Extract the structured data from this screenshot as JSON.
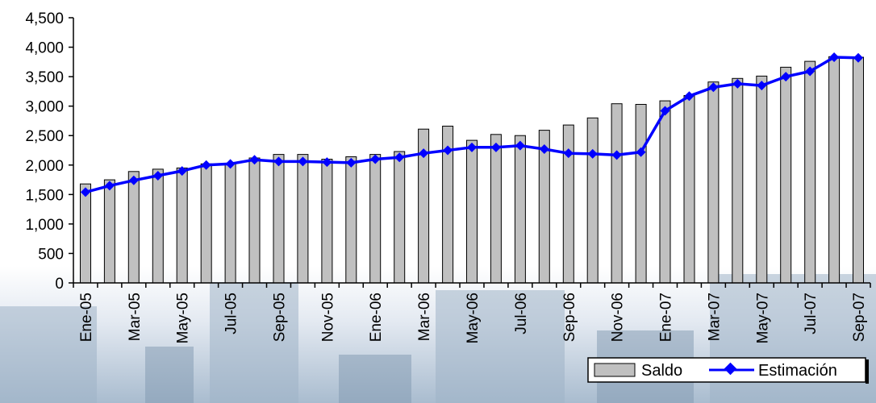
{
  "chart_data": {
    "type": "bar",
    "title": "",
    "xlabel": "",
    "ylabel": "",
    "ylim": [
      0,
      4500
    ],
    "yticks": [
      "0",
      "500",
      "1,000",
      "1,500",
      "2,000",
      "2,500",
      "3,000",
      "3,500",
      "4,000",
      "4,500"
    ],
    "grid": false,
    "legend_position": "bottom-right",
    "categories": [
      "Ene-05",
      "Feb-05",
      "Mar-05",
      "Abr-05",
      "May-05",
      "Jun-05",
      "Jul-05",
      "Ago-05",
      "Sep-05",
      "Oct-05",
      "Nov-05",
      "Dic-05",
      "Ene-06",
      "Feb-06",
      "Mar-06",
      "Abr-06",
      "May-06",
      "Jun-06",
      "Jul-06",
      "Ago-06",
      "Sep-06",
      "Oct-06",
      "Nov-06",
      "Dic-06",
      "Ene-07",
      "Feb-07",
      "Mar-07",
      "Abr-07",
      "May-07",
      "Jun-07",
      "Jul-07",
      "Ago-07",
      "Sep-07"
    ],
    "tick_labels": [
      "Ene-05",
      "",
      "Mar-05",
      "",
      "May-05",
      "",
      "Jul-05",
      "",
      "Sep-05",
      "",
      "Nov-05",
      "",
      "Ene-06",
      "",
      "Mar-06",
      "",
      "May-06",
      "",
      "Jul-06",
      "",
      "Sep-06",
      "",
      "Nov-06",
      "",
      "Ene-07",
      "",
      "Mar-07",
      "",
      "May-07",
      "",
      "Jul-07",
      "",
      "Sep-07"
    ],
    "series": [
      {
        "name": "Saldo",
        "type": "bar",
        "color": "#c0c0c0",
        "values": [
          1680,
          1750,
          1890,
          1930,
          1950,
          2020,
          2030,
          2120,
          2180,
          2180,
          2100,
          2140,
          2180,
          2230,
          2610,
          2660,
          2420,
          2520,
          2500,
          2590,
          2680,
          2800,
          3040,
          3030,
          3090,
          3180,
          3410,
          3470,
          3510,
          3660,
          3760,
          3840,
          3830
        ]
      },
      {
        "name": "Estimación",
        "type": "line",
        "color": "#0000ff",
        "values": [
          1540,
          1650,
          1740,
          1820,
          1900,
          2000,
          2020,
          2090,
          2060,
          2060,
          2050,
          2040,
          2100,
          2130,
          2200,
          2250,
          2300,
          2300,
          2330,
          2270,
          2200,
          2190,
          2170,
          2220,
          2920,
          3170,
          3320,
          3380,
          3350,
          3500,
          3590,
          3830,
          3820
        ]
      }
    ]
  }
}
